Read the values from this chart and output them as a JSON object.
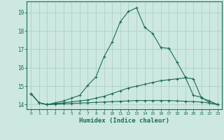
{
  "xlabel": "Humidex (Indice chaleur)",
  "background_color": "#cce8e0",
  "line_color": "#1a6b5a",
  "grid_color": "#aaccbf",
  "xlim": [
    -0.5,
    23.5
  ],
  "ylim": [
    13.75,
    19.6
  ],
  "yticks": [
    14,
    15,
    16,
    17,
    18,
    19
  ],
  "xticks": [
    0,
    1,
    2,
    3,
    4,
    5,
    6,
    7,
    8,
    9,
    10,
    11,
    12,
    13,
    14,
    15,
    16,
    17,
    18,
    19,
    20,
    21,
    22,
    23
  ],
  "series": [
    [
      14.6,
      14.1,
      14.0,
      14.1,
      14.2,
      14.35,
      14.5,
      15.05,
      15.5,
      16.6,
      17.4,
      18.5,
      19.05,
      19.25,
      18.2,
      17.85,
      17.1,
      17.05,
      16.3,
      15.5,
      14.5,
      14.4,
      14.1,
      14.0
    ],
    [
      14.6,
      14.1,
      14.0,
      14.05,
      14.1,
      14.15,
      14.2,
      14.25,
      14.35,
      14.45,
      14.6,
      14.75,
      14.9,
      15.0,
      15.1,
      15.2,
      15.3,
      15.35,
      15.4,
      15.45,
      15.4,
      14.35,
      14.2,
      14.0
    ],
    [
      14.6,
      14.1,
      14.0,
      14.02,
      14.04,
      14.06,
      14.08,
      14.1,
      14.12,
      14.14,
      14.16,
      14.18,
      14.2,
      14.22,
      14.22,
      14.22,
      14.22,
      14.22,
      14.2,
      14.18,
      14.16,
      14.14,
      14.08,
      14.0
    ]
  ]
}
